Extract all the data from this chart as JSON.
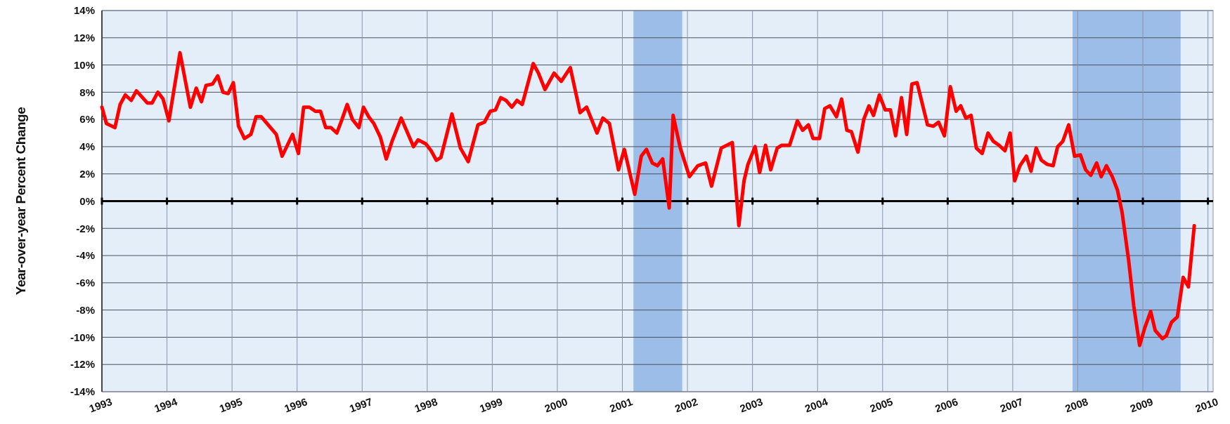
{
  "chart_data": {
    "type": "line",
    "ylabel": "Year-over-year Percent Change",
    "x": [
      1993.0,
      1993.07,
      1993.2,
      1993.28,
      1993.36,
      1993.45,
      1993.53,
      1993.7,
      1993.77,
      1993.86,
      1993.94,
      1994.03,
      1994.2,
      1994.36,
      1994.45,
      1994.53,
      1994.6,
      1994.7,
      1994.78,
      1994.86,
      1994.94,
      1995.02,
      1995.1,
      1995.19,
      1995.29,
      1995.37,
      1995.45,
      1995.68,
      1995.77,
      1995.93,
      1996.02,
      1996.1,
      1996.19,
      1996.28,
      1996.36,
      1996.44,
      1996.52,
      1996.61,
      1996.69,
      1996.77,
      1996.85,
      1996.95,
      1997.02,
      1997.1,
      1997.18,
      1997.28,
      1997.37,
      1997.46,
      1997.6,
      1997.79,
      1997.86,
      1997.98,
      1998.06,
      1998.14,
      1998.21,
      1998.38,
      1998.51,
      1998.63,
      1998.78,
      1998.88,
      1998.97,
      1999.05,
      1999.13,
      1999.21,
      1999.3,
      1999.38,
      1999.46,
      1999.63,
      1999.71,
      1999.81,
      1999.95,
      2000.06,
      2000.2,
      2000.35,
      2000.45,
      2000.61,
      2000.7,
      2000.8,
      2000.94,
      2001.03,
      2001.19,
      2001.29,
      2001.37,
      2001.46,
      2001.54,
      2001.62,
      2001.72,
      2001.78,
      2001.89,
      2002.03,
      2002.16,
      2002.28,
      2002.37,
      2002.52,
      2002.69,
      2002.79,
      2002.87,
      2002.93,
      2003.04,
      2003.11,
      2003.2,
      2003.28,
      2003.38,
      2003.45,
      2003.57,
      2003.69,
      2003.77,
      2003.86,
      2003.93,
      2004.03,
      2004.11,
      2004.19,
      2004.29,
      2004.37,
      2004.45,
      2004.52,
      2004.62,
      2004.71,
      2004.79,
      2004.86,
      2004.95,
      2005.04,
      2005.12,
      2005.2,
      2005.29,
      2005.37,
      2005.45,
      2005.53,
      2005.69,
      2005.78,
      2005.86,
      2005.95,
      2006.04,
      2006.13,
      2006.2,
      2006.28,
      2006.36,
      2006.44,
      2006.53,
      2006.62,
      2006.7,
      2006.79,
      2006.88,
      2006.96,
      2007.03,
      2007.11,
      2007.21,
      2007.28,
      2007.36,
      2007.44,
      2007.53,
      2007.62,
      2007.69,
      2007.77,
      2007.86,
      2007.95,
      2008.04,
      2008.12,
      2008.2,
      2008.29,
      2008.36,
      2008.44,
      2008.53,
      2008.61,
      2008.68,
      2008.78,
      2008.86,
      2008.95,
      2009.03,
      2009.12,
      2009.19,
      2009.3,
      2009.36,
      2009.44,
      2009.53,
      2009.62,
      2009.7,
      2009.79
    ],
    "series": [
      {
        "color": "#ff0000",
        "values": [
          6.9,
          5.7,
          5.4,
          7.1,
          7.8,
          7.4,
          8.1,
          7.2,
          7.2,
          8.0,
          7.5,
          5.9,
          10.9,
          6.9,
          8.3,
          7.3,
          8.5,
          8.6,
          9.2,
          8.0,
          7.9,
          8.7,
          5.5,
          4.6,
          4.9,
          6.2,
          6.2,
          4.9,
          3.3,
          4.9,
          3.5,
          6.9,
          6.9,
          6.6,
          6.6,
          5.4,
          5.4,
          5.0,
          6.0,
          7.1,
          6.0,
          5.4,
          6.9,
          6.2,
          5.7,
          4.7,
          3.1,
          4.4,
          6.1,
          4.0,
          4.5,
          4.2,
          3.7,
          3.0,
          3.2,
          6.4,
          3.9,
          2.9,
          5.6,
          5.8,
          6.6,
          6.7,
          7.6,
          7.4,
          6.9,
          7.4,
          7.1,
          10.1,
          9.4,
          8.2,
          9.4,
          8.8,
          9.8,
          6.5,
          6.9,
          5.0,
          6.1,
          5.7,
          2.3,
          3.8,
          0.5,
          3.3,
          3.8,
          2.8,
          2.6,
          3.1,
          -0.5,
          6.3,
          3.9,
          1.8,
          2.6,
          2.8,
          1.1,
          3.9,
          4.3,
          -1.8,
          1.5,
          2.7,
          4.0,
          2.1,
          4.1,
          2.3,
          3.9,
          4.1,
          4.1,
          5.9,
          5.2,
          5.6,
          4.6,
          4.6,
          6.8,
          7.0,
          6.2,
          7.5,
          5.2,
          5.1,
          3.6,
          6.0,
          7.0,
          6.3,
          7.8,
          6.7,
          6.7,
          4.8,
          7.6,
          4.9,
          8.6,
          8.7,
          5.6,
          5.5,
          5.8,
          4.8,
          8.4,
          6.6,
          7.0,
          6.1,
          6.3,
          3.9,
          3.5,
          5.0,
          4.4,
          4.1,
          3.7,
          5.0,
          1.5,
          2.6,
          3.3,
          2.2,
          3.9,
          3.0,
          2.7,
          2.6,
          4.0,
          4.4,
          5.6,
          3.3,
          3.4,
          2.3,
          1.9,
          2.8,
          1.8,
          2.6,
          1.8,
          0.8,
          -0.8,
          -4.3,
          -7.7,
          -10.6,
          -9.3,
          -8.1,
          -9.5,
          -10.1,
          -9.9,
          -8.9,
          -8.5,
          -5.6,
          -6.3,
          -1.8
        ]
      }
    ],
    "xlim": [
      1993,
      2010.08
    ],
    "xticks": [
      1993,
      1994,
      1995,
      1996,
      1997,
      1998,
      1999,
      2000,
      2001,
      2002,
      2003,
      2004,
      2005,
      2006,
      2007,
      2008,
      2009,
      2010
    ],
    "ylim": [
      -14,
      14
    ],
    "yticks": [
      {
        "value": -14,
        "label": "-14%"
      },
      {
        "value": -12,
        "label": "-12%"
      },
      {
        "value": -10,
        "label": "-10%"
      },
      {
        "value": -8,
        "label": "-8%"
      },
      {
        "value": -6,
        "label": "-6%"
      },
      {
        "value": -4,
        "label": "-4%"
      },
      {
        "value": -2,
        "label": "-2%"
      },
      {
        "value": 0,
        "label": "0%"
      },
      {
        "value": 2,
        "label": "2%"
      },
      {
        "value": 4,
        "label": "4%"
      },
      {
        "value": 6,
        "label": "6%"
      },
      {
        "value": 8,
        "label": "8%"
      },
      {
        "value": 10,
        "label": "10%"
      },
      {
        "value": 12,
        "label": "12%"
      },
      {
        "value": 14,
        "label": "14%"
      }
    ],
    "bands": [
      {
        "axis": "x",
        "from": 2001.17,
        "to": 2001.92,
        "color": "#9bbde8"
      },
      {
        "axis": "x",
        "from": 2007.92,
        "to": 2009.58,
        "color": "#9bbde8"
      }
    ],
    "grid": true,
    "line_style": "solid",
    "marker": "none"
  }
}
